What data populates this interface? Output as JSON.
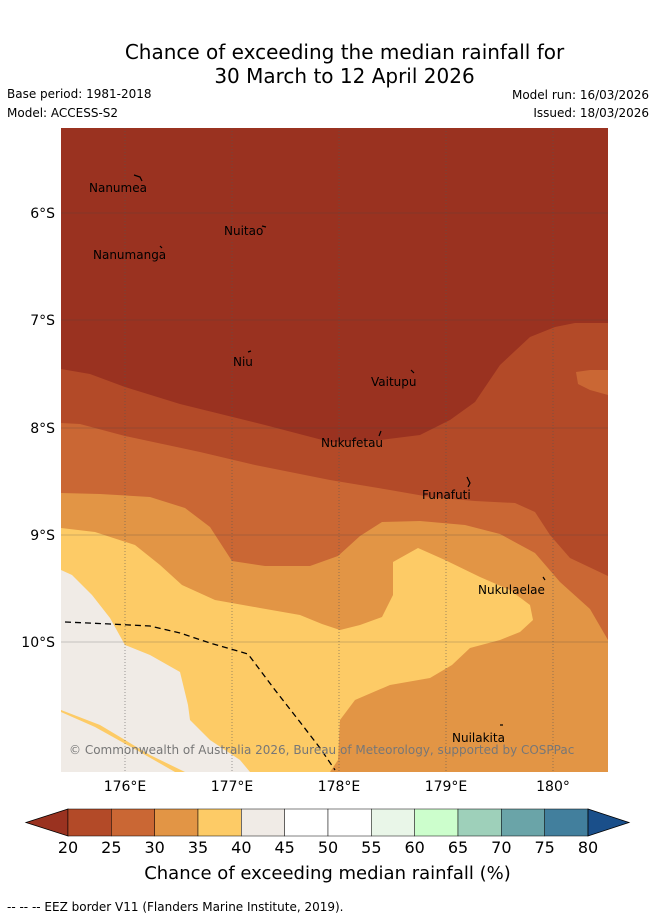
{
  "title": {
    "line1": "Chance of exceeding the median rainfall for",
    "line2": "30 March to 12 April 2026"
  },
  "meta": {
    "base_period": "Base period: 1981-2018",
    "model": "Model: ACCESS-S2",
    "model_run": "Model run: 16/03/2026",
    "issued": "Issued: 18/03/2026"
  },
  "map": {
    "lat_labels": [
      "6°S",
      "7°S",
      "8°S",
      "9°S",
      "10°S"
    ],
    "lon_labels": [
      "176°E",
      "177°E",
      "178°E",
      "179°E",
      "180°"
    ],
    "places": [
      "Nanumea",
      "Nuitao",
      "Nanumanga",
      "Niu",
      "Vaitupu",
      "Nukufetau",
      "Funafuti",
      "Nukulaelae",
      "Nuilakita"
    ],
    "copyright": "© Commonwealth of Australia 2026, Bureau of Meteorology, supported by COSPPac"
  },
  "colorbar": {
    "ticks": [
      "20",
      "25",
      "30",
      "35",
      "40",
      "45",
      "50",
      "55",
      "60",
      "65",
      "70",
      "75",
      "80"
    ],
    "colors": [
      "#9a3220",
      "#b34a28",
      "#ca6734",
      "#e29545",
      "#fdcb66",
      "#f0ebe6",
      "#ffffff",
      "#ffffff",
      "#e9f6e8",
      "#ccfecc",
      "#9ed0ba",
      "#6aa4a8",
      "#427f9d",
      "#1a4f8a"
    ],
    "label": "Chance of exceeding median rainfall (%)"
  },
  "footnote": "--  --  -- EEZ border V11 (Flanders Marine Institute, 2019)."
}
